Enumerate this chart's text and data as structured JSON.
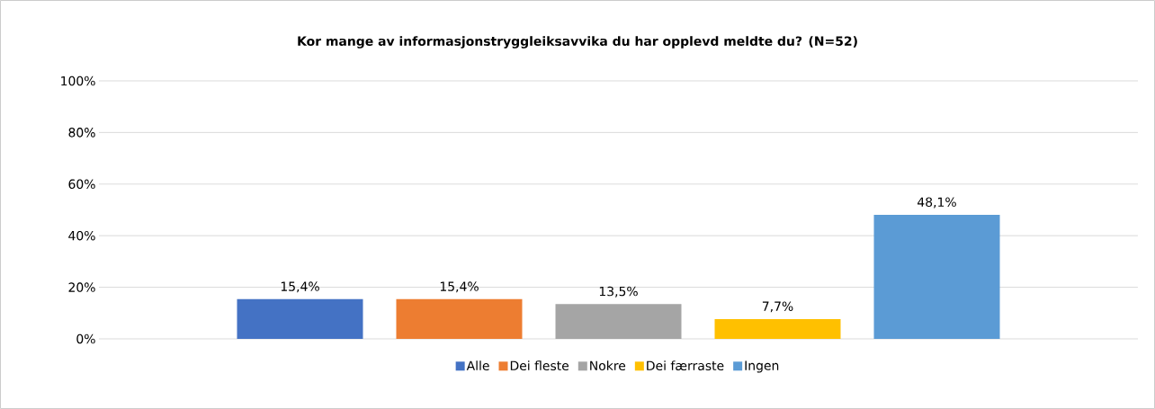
{
  "chart_data": {
    "type": "bar",
    "title": "Kor mange av informasjonstryggleiksavvika du har opplevd meldte du? (N=52)",
    "categories": [
      null
    ],
    "series": [
      {
        "name": "Alle",
        "color": "#4472c4",
        "values": [
          15.4
        ],
        "value_labels": [
          "15,4%"
        ]
      },
      {
        "name": "Dei fleste",
        "color": "#ed7d31",
        "values": [
          15.4
        ],
        "value_labels": [
          "15,4%"
        ]
      },
      {
        "name": "Nokre",
        "color": "#a5a5a5",
        "values": [
          13.5
        ],
        "value_labels": [
          "13,5%"
        ]
      },
      {
        "name": "Dei færraste",
        "color": "#ffc000",
        "values": [
          7.7
        ],
        "value_labels": [
          "7,7%"
        ]
      },
      {
        "name": "Ingen",
        "color": "#5b9bd5",
        "values": [
          48.1
        ],
        "value_labels": [
          "48,1%"
        ]
      }
    ],
    "ylim": [
      0,
      100
    ],
    "yticks": [
      {
        "value": 0,
        "label": "0%"
      },
      {
        "value": 20,
        "label": "20%"
      },
      {
        "value": 40,
        "label": "40%"
      },
      {
        "value": 60,
        "label": "60%"
      },
      {
        "value": 80,
        "label": "80%"
      },
      {
        "value": 100,
        "label": "100%"
      }
    ],
    "grid": "y",
    "legend": "bottom"
  }
}
